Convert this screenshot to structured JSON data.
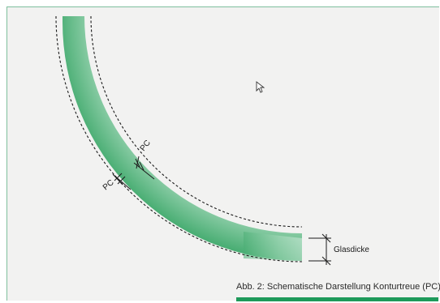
{
  "diagram": {
    "pc_label_top": "PC",
    "pc_label_bottom": "PC",
    "thickness_label": "Glasdicke",
    "caption": "Abb. 2: Schematische Darstellung Konturtreue (PC)"
  },
  "icons": {
    "cursor": "mouse-pointer-icon"
  },
  "colors": {
    "glass_green": "#58b982",
    "glass_light": "#cfe9da",
    "accent_rule": "#1e9a5a",
    "panel_border": "#7fbf9d"
  }
}
